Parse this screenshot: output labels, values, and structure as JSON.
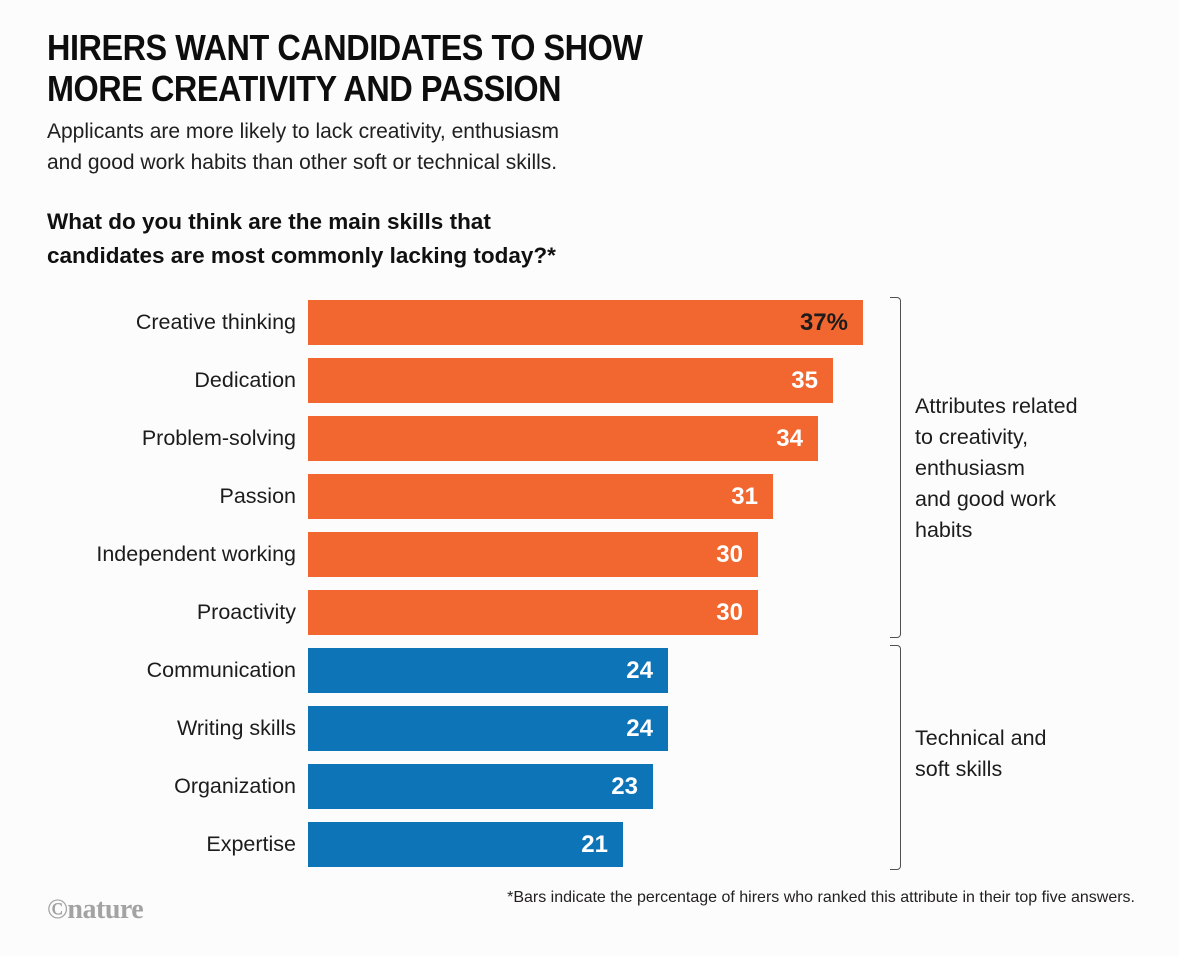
{
  "header": {
    "title": "HIRERS WANT CANDIDATES TO SHOW\nMORE CREATIVITY AND PASSION",
    "subtitle": "Applicants are more likely to lack creativity, enthusiasm\nand good work habits than other soft or technical skills.",
    "question": "What do you think are the main skills that\ncandidates are most commonly lacking today?*"
  },
  "chart_data": {
    "type": "bar",
    "orientation": "horizontal",
    "title": "What do you think are the main skills that candidates are most commonly lacking today?*",
    "categories": [
      "Creative thinking",
      "Dedication",
      "Problem-solving",
      "Passion",
      "Independent working",
      "Proactivity",
      "Communication",
      "Writing skills",
      "Organization",
      "Expertise"
    ],
    "values": [
      37,
      35,
      34,
      31,
      30,
      30,
      24,
      24,
      23,
      21
    ],
    "value_labels": [
      "37%",
      "35",
      "34",
      "31",
      "30",
      "30",
      "24",
      "24",
      "23",
      "21"
    ],
    "unit": "%",
    "xlim": [
      0,
      37
    ],
    "groups": [
      "creativity",
      "creativity",
      "creativity",
      "creativity",
      "creativity",
      "creativity",
      "technical",
      "technical",
      "technical",
      "technical"
    ],
    "colors": {
      "creativity": "#F2672F",
      "technical": "#0E74B8"
    },
    "value_label_colors": [
      "#1d1b1b",
      "#ffffff",
      "#ffffff",
      "#ffffff",
      "#ffffff",
      "#ffffff",
      "#ffffff",
      "#ffffff",
      "#ffffff",
      "#ffffff"
    ],
    "grid": false,
    "legend": false,
    "annotations": [
      {
        "group": "creativity",
        "label": "Attributes related\nto creativity,\nenthusiasm\nand good work\nhabits"
      },
      {
        "group": "technical",
        "label": "Technical and\nsoft skills"
      }
    ]
  },
  "footer": {
    "footnote": "*Bars indicate the percentage of hirers who ranked this attribute in their top five answers.",
    "credit": "©nature"
  }
}
